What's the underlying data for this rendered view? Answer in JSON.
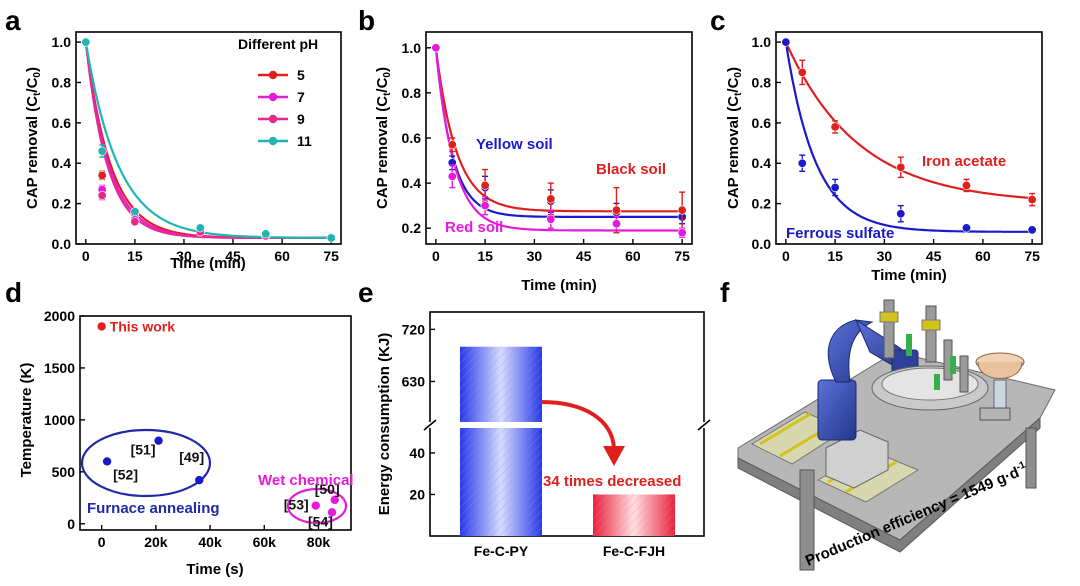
{
  "panel_letters": {
    "a": "a",
    "b": "b",
    "c": "c",
    "d": "d",
    "e": "e",
    "f": "f"
  },
  "colors": {
    "red": "#e0201f",
    "magenta": "#e51bd9",
    "pink": "#e52a8e",
    "teal": "#22b3b3",
    "blue": "#1a1ac8",
    "dark": "#111111",
    "navy": "#1f2aa8"
  },
  "chart_data": [
    {
      "id": "a",
      "type": "line",
      "title": "",
      "xlabel": "Time (min)",
      "ylabel_main": "CAP removal (C",
      "ylabel_sub1": "t",
      "ylabel_mid": "/C",
      "ylabel_sub2": "0",
      "ylabel_end": ")",
      "xlim": [
        -3,
        78
      ],
      "ylim": [
        0,
        1.05
      ],
      "xticks": [
        0,
        15,
        30,
        45,
        60,
        75
      ],
      "xtick_labels": [
        "0",
        "15",
        "30",
        "45",
        "60",
        "75"
      ],
      "yticks": [
        0,
        0.2,
        0.4,
        0.6,
        0.8,
        1.0
      ],
      "ytick_labels": [
        "0.0",
        "0.2",
        "0.4",
        "0.6",
        "0.8",
        "1.0"
      ],
      "legend_title": "Different pH",
      "legend_position": "top-right",
      "x": [
        0,
        5,
        15,
        35,
        55,
        75
      ],
      "series": [
        {
          "name": "5",
          "color": "#e0201f",
          "values": [
            1.0,
            0.34,
            0.15,
            0.07,
            0.04,
            0.03
          ],
          "errors": [
            0,
            0.02,
            0.01,
            0.01,
            0.01,
            0.01
          ],
          "k": 0.13
        },
        {
          "name": "7",
          "color": "#e51bd9",
          "values": [
            1.0,
            0.27,
            0.12,
            0.06,
            0.04,
            0.03
          ],
          "errors": [
            0,
            0.02,
            0.01,
            0.01,
            0.01,
            0.01
          ],
          "k": 0.14
        },
        {
          "name": "9",
          "color": "#e52a8e",
          "values": [
            1.0,
            0.24,
            0.11,
            0.06,
            0.04,
            0.03
          ],
          "errors": [
            0,
            0.02,
            0.01,
            0.01,
            0.01,
            0.01
          ],
          "k": 0.15
        },
        {
          "name": "11",
          "color": "#22b3b3",
          "values": [
            1.0,
            0.46,
            0.16,
            0.08,
            0.05,
            0.03
          ],
          "errors": [
            0,
            0.03,
            0.01,
            0.01,
            0.01,
            0.01
          ],
          "k": 0.1
        }
      ]
    },
    {
      "id": "b",
      "type": "line",
      "title": "",
      "xlabel": "Time (min)",
      "ylabel_main": "CAP removal (C",
      "ylabel_sub1": "t",
      "ylabel_mid": "/C",
      "ylabel_sub2": "0",
      "ylabel_end": ")",
      "xlim": [
        -3,
        78
      ],
      "ylim": [
        0.13,
        1.07
      ],
      "xticks": [
        0,
        15,
        30,
        45,
        60,
        75
      ],
      "xtick_labels": [
        "0",
        "15",
        "30",
        "45",
        "60",
        "75"
      ],
      "yticks": [
        0.2,
        0.4,
        0.6,
        0.8,
        1.0
      ],
      "ytick_labels": [
        "0.2",
        "0.4",
        "0.6",
        "0.8",
        "1.0"
      ],
      "x": [
        0,
        5,
        15,
        35,
        55,
        75
      ],
      "series": [
        {
          "name": "Yellow soil",
          "color": "#1a1ac8",
          "values": [
            1.0,
            0.49,
            0.38,
            0.32,
            0.27,
            0.25
          ],
          "errors": [
            0,
            0.03,
            0.05,
            0.05,
            0.04,
            0.03
          ],
          "asym": 0.25,
          "k": 0.2
        },
        {
          "name": "Black soil",
          "color": "#e0201f",
          "values": [
            1.0,
            0.57,
            0.39,
            0.33,
            0.28,
            0.28
          ],
          "errors": [
            0,
            0.03,
            0.07,
            0.07,
            0.1,
            0.08
          ],
          "asym": 0.275,
          "k": 0.16
        },
        {
          "name": "Red soil",
          "color": "#e51bd9",
          "values": [
            1.0,
            0.43,
            0.3,
            0.24,
            0.22,
            0.18
          ],
          "errors": [
            0,
            0.05,
            0.04,
            0.04,
            0.03,
            0.02
          ],
          "asym": 0.19,
          "k": 0.18
        }
      ]
    },
    {
      "id": "c",
      "type": "line",
      "title": "",
      "xlabel": "Time (min)",
      "ylabel_main": "CAP removal (C",
      "ylabel_sub1": "t",
      "ylabel_mid": "/C",
      "ylabel_sub2": "0",
      "ylabel_end": ")",
      "xlim": [
        -3,
        78
      ],
      "ylim": [
        0,
        1.05
      ],
      "xticks": [
        0,
        15,
        30,
        45,
        60,
        75
      ],
      "xtick_labels": [
        "0",
        "15",
        "30",
        "45",
        "60",
        "75"
      ],
      "yticks": [
        0,
        0.2,
        0.4,
        0.6,
        0.8,
        1.0
      ],
      "ytick_labels": [
        "0.0",
        "0.2",
        "0.4",
        "0.6",
        "0.8",
        "1.0"
      ],
      "x": [
        0,
        5,
        15,
        35,
        55,
        75
      ],
      "series": [
        {
          "name": "Iron acetate",
          "color": "#e0201f",
          "values": [
            1.0,
            0.85,
            0.58,
            0.38,
            0.29,
            0.22
          ],
          "errors": [
            0,
            0.06,
            0.03,
            0.05,
            0.03,
            0.03
          ],
          "asym": 0.2,
          "k": 0.045
        },
        {
          "name": "Ferrous sulfate",
          "color": "#1a1ac8",
          "values": [
            1.0,
            0.4,
            0.28,
            0.15,
            0.08,
            0.07
          ],
          "errors": [
            0,
            0.04,
            0.04,
            0.04,
            0.01,
            0.01
          ],
          "asym": 0.06,
          "k": 0.11
        }
      ]
    },
    {
      "id": "d",
      "type": "scatter",
      "title": "",
      "xlabel": "Time (s)",
      "ylabel": "Temperature (K)",
      "xlim": [
        -8000,
        92000
      ],
      "ylim": [
        -60,
        2000
      ],
      "xticks": [
        0,
        20000,
        40000,
        60000,
        80000
      ],
      "xtick_labels": [
        "0",
        "20k",
        "40k",
        "60k",
        "80k"
      ],
      "yticks": [
        0,
        500,
        1000,
        1500,
        2000
      ],
      "ytick_labels": [
        "0",
        "500",
        "1000",
        "1500",
        "2000"
      ],
      "points": [
        {
          "label": "This work",
          "x": 0,
          "y": 1900,
          "color": "#e0201f",
          "group": "this"
        },
        {
          "label": "[51]",
          "x": 21000,
          "y": 800,
          "color": "#1a1ac8",
          "group": "furnace"
        },
        {
          "label": "[52]",
          "x": 2000,
          "y": 600,
          "color": "#1a1ac8",
          "group": "furnace"
        },
        {
          "label": "[49]",
          "x": 36000,
          "y": 420,
          "color": "#1a1ac8",
          "group": "furnace"
        },
        {
          "label": "[53]",
          "x": 79000,
          "y": 175,
          "color": "#e51bd9",
          "group": "wet"
        },
        {
          "label": "[50]",
          "x": 86000,
          "y": 230,
          "color": "#e51bd9",
          "group": "wet"
        },
        {
          "label": "[54]",
          "x": 85000,
          "y": 110,
          "color": "#e51bd9",
          "group": "wet"
        }
      ],
      "group_labels": {
        "furnace": "Furnace annealing",
        "wet": "Wet chemical"
      }
    },
    {
      "id": "e",
      "type": "bar",
      "title": "",
      "xlabel": "",
      "ylabel": "Energy consumption (KJ)",
      "categories": [
        "Fe-C-PY",
        "Fe-C-FJH"
      ],
      "values": [
        690,
        20
      ],
      "colors": [
        "#2d3ee8",
        "#e83040"
      ],
      "axis_break": true,
      "lower_range": [
        0,
        52
      ],
      "lower_ticks": [
        20,
        40
      ],
      "lower_tick_labels": [
        "20",
        "40"
      ],
      "upper_range": [
        560,
        750
      ],
      "upper_ticks": [
        630,
        720
      ],
      "upper_tick_labels": [
        "630",
        "720"
      ],
      "annotation": "34 times decreased"
    }
  ],
  "panel_f": {
    "caption": "Production efficiency = 1549 g·d",
    "caption_sup": "-1"
  }
}
